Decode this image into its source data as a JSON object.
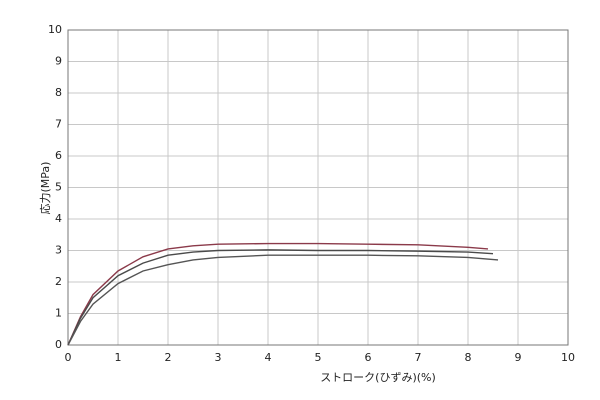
{
  "chart_data": {
    "type": "line",
    "x_label": "ストローク(ひずみ)(%)",
    "y_label": "応力(MPa)",
    "xlim": [
      0,
      10
    ],
    "xticks": [
      0,
      1,
      2,
      3,
      4,
      5,
      6,
      7,
      8,
      9,
      10
    ],
    "ylim": [
      0,
      10
    ],
    "yticks": [
      0,
      1,
      2,
      3,
      4,
      5,
      6,
      7,
      8,
      9,
      10
    ],
    "grid": true,
    "series": [
      {
        "color": "#8b3a4a",
        "x": [
          0,
          0.25,
          0.5,
          1,
          1.5,
          2,
          2.5,
          3,
          4,
          5,
          6,
          7,
          8,
          8.4
        ],
        "values": [
          0,
          0.9,
          1.6,
          2.35,
          2.8,
          3.05,
          3.15,
          3.2,
          3.22,
          3.22,
          3.2,
          3.18,
          3.1,
          3.05
        ]
      },
      {
        "color": "#4a4a4a",
        "x": [
          0,
          0.25,
          0.5,
          1,
          1.5,
          2,
          2.5,
          3,
          4,
          5,
          6,
          7,
          8,
          8.5
        ],
        "values": [
          0,
          0.85,
          1.5,
          2.2,
          2.6,
          2.85,
          2.95,
          3.0,
          3.02,
          3.0,
          3.0,
          2.98,
          2.95,
          2.9
        ]
      },
      {
        "color": "#555555",
        "x": [
          0,
          0.25,
          0.5,
          1,
          1.5,
          2,
          2.5,
          3,
          4,
          5,
          6,
          7,
          8,
          8.6
        ],
        "values": [
          0,
          0.75,
          1.3,
          1.95,
          2.35,
          2.55,
          2.7,
          2.78,
          2.85,
          2.85,
          2.85,
          2.83,
          2.78,
          2.7
        ]
      }
    ]
  }
}
